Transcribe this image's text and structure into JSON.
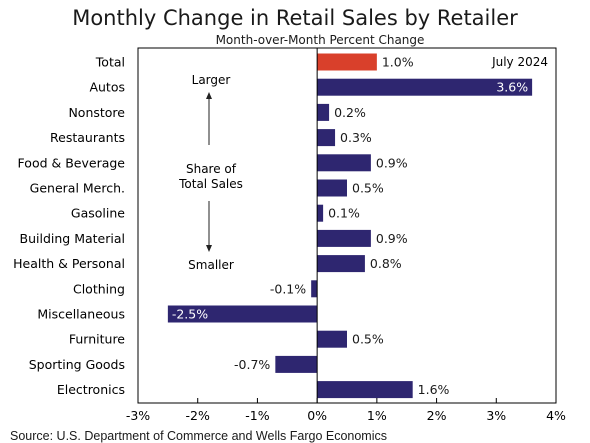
{
  "header": {
    "title": "Monthly Change in Retail Sales by Retailer",
    "subtitle": "Month-over-Month Percent Change"
  },
  "source": "Source: U.S. Department of Commerce and Wells Fargo Economics",
  "chart_data": {
    "type": "bar",
    "orientation": "horizontal",
    "period_label": "July 2024",
    "categories": [
      "Total",
      "Autos",
      "Nonstore",
      "Restaurants",
      "Food & Beverage",
      "General Merch.",
      "Gasoline",
      "Building Material",
      "Health & Personal",
      "Clothing",
      "Miscellaneous",
      "Furniture",
      "Sporting Goods",
      "Electronics"
    ],
    "values": [
      1.0,
      3.6,
      0.2,
      0.3,
      0.9,
      0.5,
      0.1,
      0.9,
      0.8,
      -0.1,
      -2.5,
      0.5,
      -0.7,
      1.6
    ],
    "value_labels": [
      "1.0%",
      "3.6%",
      "0.2%",
      "0.3%",
      "0.9%",
      "0.5%",
      "0.1%",
      "0.9%",
      "0.8%",
      "-0.1%",
      "-2.5%",
      "0.5%",
      "-0.7%",
      "1.6%"
    ],
    "xlim": [
      -3,
      4
    ],
    "xticks": [
      -3,
      -2,
      -1,
      0,
      1,
      2,
      3,
      4
    ],
    "xtick_labels": [
      "-3%",
      "-2%",
      "-1%",
      "0%",
      "1%",
      "2%",
      "3%",
      "4%"
    ],
    "grid": false,
    "colors": {
      "highlight": "#d9402b",
      "bar": "#2e2670",
      "axis": "#000000"
    },
    "annotations": {
      "top": "Larger",
      "middle": "Share of\nTotal Sales",
      "bottom": "Smaller"
    }
  }
}
